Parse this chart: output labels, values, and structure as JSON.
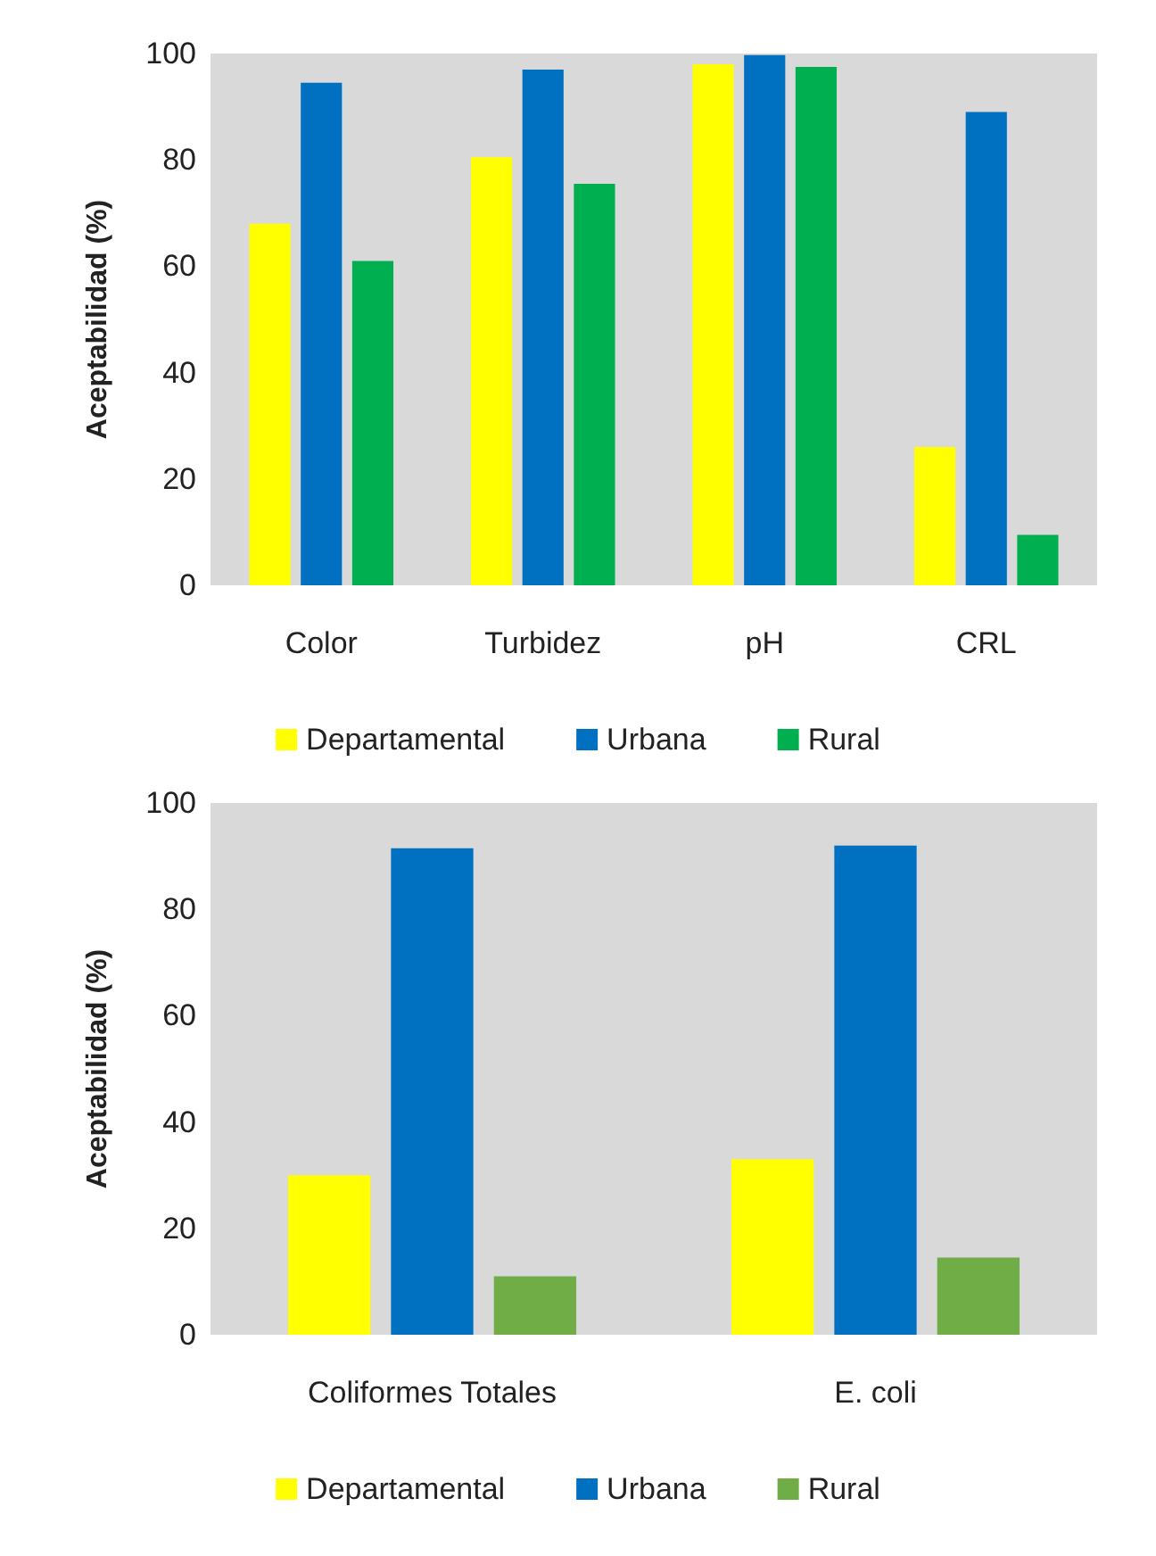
{
  "chart_data": [
    {
      "type": "bar",
      "ylabel": "Aceptabilidad (%)",
      "categories": [
        "Color",
        "Turbidez",
        "pH",
        "CRL"
      ],
      "series": [
        {
          "name": "Departamental",
          "color": "#ffff00",
          "values": [
            68,
            80.5,
            98,
            26
          ]
        },
        {
          "name": "Urbana",
          "color": "#0070c0",
          "values": [
            94.5,
            97,
            99.7,
            89
          ]
        },
        {
          "name": "Rural",
          "color": "#00b050",
          "values": [
            61,
            75.5,
            97.5,
            9.5
          ]
        }
      ],
      "ylim": [
        0,
        100
      ],
      "yticks": [
        0,
        20,
        40,
        60,
        80,
        100
      ],
      "grid": false,
      "legend": "bottom"
    },
    {
      "type": "bar",
      "ylabel": "Aceptabilidad (%)",
      "categories": [
        "Coliformes Totales",
        "E. coli"
      ],
      "series": [
        {
          "name": "Departamental",
          "color": "#ffff00",
          "values": [
            30,
            33
          ]
        },
        {
          "name": "Urbana",
          "color": "#0070c0",
          "values": [
            91.5,
            92
          ]
        },
        {
          "name": "Rural",
          "color": "#70ad47",
          "values": [
            11,
            14.5
          ]
        }
      ],
      "ylim": [
        0,
        100
      ],
      "yticks": [
        0,
        20,
        40,
        60,
        80,
        100
      ],
      "grid": false,
      "legend": "bottom"
    }
  ]
}
